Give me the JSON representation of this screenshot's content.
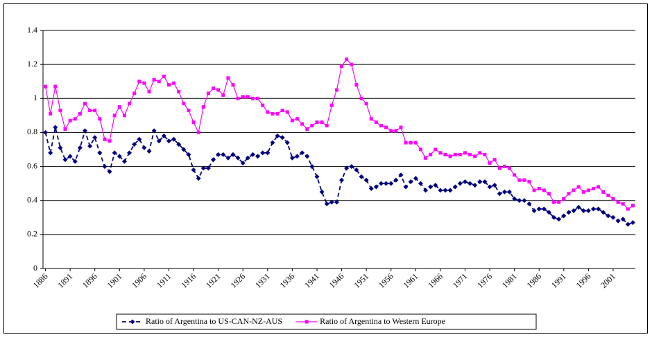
{
  "chart_data": {
    "type": "line",
    "x": [
      1886,
      1887,
      1888,
      1889,
      1890,
      1891,
      1892,
      1893,
      1894,
      1895,
      1896,
      1897,
      1898,
      1899,
      1900,
      1901,
      1902,
      1903,
      1904,
      1905,
      1906,
      1907,
      1908,
      1909,
      1910,
      1911,
      1912,
      1913,
      1914,
      1915,
      1916,
      1917,
      1918,
      1919,
      1920,
      1921,
      1922,
      1923,
      1924,
      1925,
      1926,
      1927,
      1928,
      1929,
      1930,
      1931,
      1932,
      1933,
      1934,
      1935,
      1936,
      1937,
      1938,
      1939,
      1940,
      1941,
      1942,
      1943,
      1944,
      1945,
      1946,
      1947,
      1948,
      1949,
      1950,
      1951,
      1952,
      1953,
      1954,
      1955,
      1956,
      1957,
      1958,
      1959,
      1960,
      1961,
      1962,
      1963,
      1964,
      1965,
      1966,
      1967,
      1968,
      1969,
      1970,
      1971,
      1972,
      1973,
      1974,
      1975,
      1976,
      1977,
      1978,
      1979,
      1980,
      1981,
      1982,
      1983,
      1984,
      1985,
      1986,
      1987,
      1988,
      1989,
      1990,
      1991,
      1992,
      1993,
      1994,
      1995,
      1996,
      1997,
      1998,
      1999,
      2000,
      2001,
      2002,
      2003,
      2004,
      2005
    ],
    "series": [
      {
        "name": "Ratio of Argentina to US-CAN-NZ-AUS",
        "color": "#000080",
        "dashed": true,
        "marker": "diamond",
        "values": [
          0.8,
          0.68,
          0.83,
          0.71,
          0.64,
          0.66,
          0.63,
          0.71,
          0.81,
          0.72,
          0.77,
          0.68,
          0.6,
          0.57,
          0.68,
          0.66,
          0.63,
          0.68,
          0.73,
          0.76,
          0.71,
          0.69,
          0.81,
          0.75,
          0.78,
          0.75,
          0.76,
          0.73,
          0.7,
          0.67,
          0.58,
          0.53,
          0.59,
          0.59,
          0.64,
          0.67,
          0.67,
          0.65,
          0.67,
          0.65,
          0.62,
          0.65,
          0.67,
          0.66,
          0.68,
          0.68,
          0.74,
          0.78,
          0.77,
          0.74,
          0.65,
          0.66,
          0.68,
          0.66,
          0.6,
          0.54,
          0.45,
          0.38,
          0.39,
          0.39,
          0.52,
          0.59,
          0.6,
          0.58,
          0.54,
          0.52,
          0.47,
          0.48,
          0.5,
          0.5,
          0.5,
          0.52,
          0.55,
          0.48,
          0.51,
          0.53,
          0.5,
          0.46,
          0.48,
          0.49,
          0.46,
          0.46,
          0.46,
          0.48,
          0.5,
          0.51,
          0.5,
          0.49,
          0.51,
          0.51,
          0.48,
          0.49,
          0.44,
          0.45,
          0.45,
          0.41,
          0.4,
          0.4,
          0.38,
          0.34,
          0.35,
          0.35,
          0.33,
          0.3,
          0.29,
          0.31,
          0.33,
          0.34,
          0.36,
          0.34,
          0.34,
          0.35,
          0.35,
          0.33,
          0.31,
          0.3,
          0.28,
          0.29,
          0.26,
          0.27
        ]
      },
      {
        "name": "Ratio of Argentina to Western Europe",
        "color": "#ff00ff",
        "dashed": false,
        "marker": "square",
        "values": [
          1.07,
          0.91,
          1.07,
          0.93,
          0.82,
          0.87,
          0.88,
          0.91,
          0.97,
          0.93,
          0.93,
          0.88,
          0.76,
          0.75,
          0.9,
          0.95,
          0.9,
          0.97,
          1.03,
          1.1,
          1.09,
          1.04,
          1.11,
          1.1,
          1.13,
          1.08,
          1.09,
          1.04,
          0.97,
          0.93,
          0.86,
          0.8,
          0.95,
          1.03,
          1.06,
          1.05,
          1.02,
          1.12,
          1.08,
          1.0,
          1.01,
          1.01,
          1.0,
          1.0,
          0.96,
          0.92,
          0.91,
          0.91,
          0.93,
          0.92,
          0.87,
          0.88,
          0.85,
          0.82,
          0.84,
          0.86,
          0.86,
          0.84,
          0.96,
          1.05,
          1.19,
          1.23,
          1.2,
          1.08,
          1.0,
          0.97,
          0.88,
          0.86,
          0.84,
          0.83,
          0.81,
          0.81,
          0.83,
          0.74,
          0.74,
          0.74,
          0.7,
          0.65,
          0.67,
          0.7,
          0.68,
          0.67,
          0.66,
          0.67,
          0.67,
          0.68,
          0.67,
          0.66,
          0.68,
          0.67,
          0.62,
          0.64,
          0.59,
          0.6,
          0.59,
          0.55,
          0.52,
          0.52,
          0.51,
          0.46,
          0.47,
          0.46,
          0.44,
          0.39,
          0.39,
          0.41,
          0.44,
          0.46,
          0.48,
          0.45,
          0.46,
          0.47,
          0.48,
          0.45,
          0.43,
          0.41,
          0.39,
          0.38,
          0.35,
          0.37
        ]
      }
    ],
    "xlim": [
      1885.5,
      2005.5
    ],
    "xticks": [
      1886,
      1891,
      1896,
      1901,
      1906,
      1911,
      1916,
      1921,
      1926,
      1931,
      1936,
      1941,
      1946,
      1951,
      1956,
      1961,
      1966,
      1971,
      1976,
      1981,
      1986,
      1991,
      1996,
      2001
    ],
    "ylim": [
      0,
      1.4
    ],
    "yticks": [
      0,
      0.2,
      0.4,
      0.6,
      0.8,
      1,
      1.2,
      1.4
    ],
    "grid": true,
    "legend": "bottom"
  }
}
